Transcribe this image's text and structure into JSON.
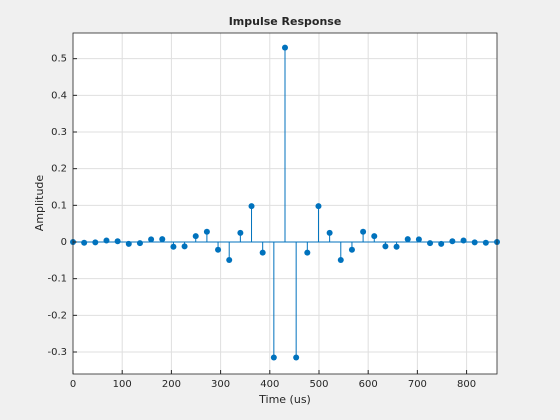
{
  "chart_data": {
    "type": "stem",
    "title": "Impulse Response",
    "xlabel": "Time (us)",
    "ylabel": "Amplitude",
    "x": [
      0,
      22.68,
      45.36,
      68.04,
      90.72,
      113.4,
      136.08,
      158.76,
      181.44,
      204.12,
      226.8,
      249.48,
      272.16,
      294.84,
      317.52,
      340.2,
      362.88,
      385.56,
      408.24,
      430.92,
      453.6,
      476.28,
      498.96,
      521.64,
      544.32,
      567,
      589.68,
      612.36,
      635.04,
      657.72,
      680.4,
      703.08,
      725.76,
      748.44,
      771.12,
      793.8,
      816.48,
      839.16,
      861.84
    ],
    "series": [
      {
        "color": "#0072bd",
        "values": [
          0,
          -0.002,
          -0.001,
          0.004,
          0.002,
          -0.005,
          -0.003,
          0.007,
          0.008,
          -0.013,
          -0.012,
          0.016,
          0.028,
          -0.021,
          -0.049,
          0.025,
          0.098,
          -0.029,
          -0.315,
          0.53,
          -0.315,
          -0.029,
          0.098,
          0.025,
          -0.049,
          -0.021,
          0.028,
          0.016,
          -0.012,
          -0.013,
          0.008,
          0.007,
          -0.003,
          -0.005,
          0.002,
          0.004,
          -0.001,
          -0.002,
          0
        ]
      }
    ],
    "xlim": [
      0,
      861.84
    ],
    "ylim": [
      -0.36,
      0.57
    ],
    "xticks": [
      0,
      100,
      200,
      300,
      400,
      500,
      600,
      700,
      800
    ],
    "yticks": [
      -0.3,
      -0.2,
      -0.1,
      0,
      0.1,
      0.2,
      0.3,
      0.4,
      0.5
    ],
    "grid": true
  }
}
